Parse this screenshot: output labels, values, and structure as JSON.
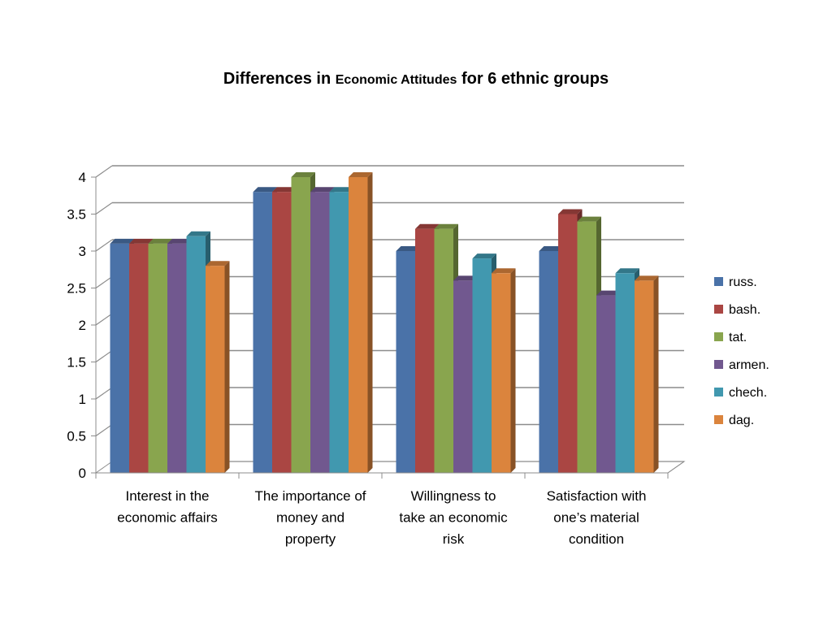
{
  "chart_data": {
    "type": "bar",
    "title_parts": [
      "Differences in ",
      "Economic Attitudes",
      " for 6 ethnic groups"
    ],
    "categories": [
      [
        "Interest in the",
        "economic affairs"
      ],
      [
        "The importance of",
        "money and",
        "property"
      ],
      [
        "Willingness to",
        "take an economic",
        "risk"
      ],
      [
        "Satisfaction with",
        "one’s material",
        "condition"
      ]
    ],
    "series": [
      {
        "name": "russ.",
        "color": "#4A72A8",
        "values": [
          3.1,
          3.8,
          3.0,
          3.0
        ]
      },
      {
        "name": "bash.",
        "color": "#AA4643",
        "values": [
          3.1,
          3.8,
          3.3,
          3.5
        ]
      },
      {
        "name": "tat.",
        "color": "#89A54E",
        "values": [
          3.1,
          4.0,
          3.3,
          3.4
        ]
      },
      {
        "name": "armen.",
        "color": "#71588F",
        "values": [
          3.1,
          3.8,
          2.6,
          2.4
        ]
      },
      {
        "name": "chech.",
        "color": "#4198AF",
        "values": [
          3.2,
          3.8,
          2.9,
          2.7
        ]
      },
      {
        "name": "dag.",
        "color": "#DB843D",
        "values": [
          2.8,
          4.0,
          2.7,
          2.6
        ]
      }
    ],
    "yticks": [
      "0",
      "0.5",
      "1",
      "1.5",
      "2",
      "2.5",
      "3",
      "3.5",
      "4"
    ],
    "ylim": [
      0,
      4
    ],
    "grid": true,
    "legend_position": "right",
    "three_d": true
  }
}
